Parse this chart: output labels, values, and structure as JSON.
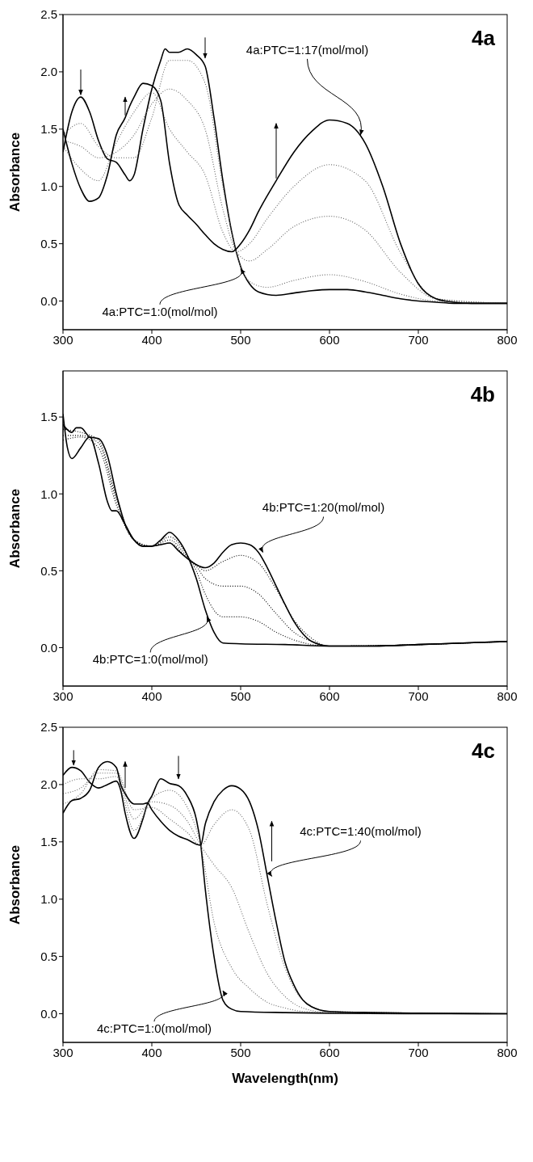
{
  "chart_data": [
    {
      "type": "line",
      "ylabel": "Absorbance",
      "xlim": [
        300,
        800
      ],
      "xticks": [
        300,
        400,
        500,
        600,
        700,
        800
      ],
      "ylim": [
        -0.25,
        2.5
      ],
      "yticks": [
        {
          "value": 0,
          "label": "0.0"
        },
        {
          "value": 0.5,
          "label": "0.5"
        },
        {
          "value": 1,
          "label": "1.0"
        },
        {
          "value": 1.5,
          "label": "1.5"
        },
        {
          "value": 2,
          "label": "2.0"
        },
        {
          "value": 2.5,
          "label": "2.5"
        }
      ],
      "annotations": [
        "4a",
        {
          "text": "4a:PTC=1:17(mol/mol)",
          "x": 635,
          "y": 1.45
        },
        {
          "text": "4a:PTC=1:0(mol/mol)",
          "x": 500,
          "y": 0.28
        }
      ],
      "series": [
        {
          "color": "#000000",
          "line_style": "solid",
          "x": [
            300,
            310,
            320,
            330,
            340,
            350,
            360,
            370,
            375,
            380,
            390,
            400,
            410,
            415,
            420,
            430,
            440,
            450,
            460,
            470,
            480,
            490,
            500,
            510,
            520,
            540,
            560,
            580,
            600,
            620,
            640,
            660,
            680,
            700,
            720,
            740,
            760,
            800
          ],
          "values": [
            1.3,
            1.65,
            1.78,
            1.65,
            1.4,
            1.24,
            1.21,
            1.1,
            1.05,
            1.1,
            1.5,
            1.85,
            2.1,
            2.2,
            2.17,
            2.17,
            2.2,
            2.15,
            2.05,
            1.6,
            1.05,
            0.6,
            0.3,
            0.15,
            0.08,
            0.05,
            0.07,
            0.09,
            0.1,
            0.1,
            0.08,
            0.05,
            0.02,
            0,
            -0.01,
            -0.02,
            -0.02,
            -0.02
          ]
        },
        {
          "color": "#666666",
          "line_style": "dotted",
          "x": [
            300,
            320,
            340,
            360,
            380,
            400,
            420,
            440,
            460,
            480,
            495,
            510,
            530,
            560,
            600,
            640,
            680,
            720,
            800
          ],
          "values": [
            1.45,
            1.55,
            1.35,
            1.25,
            1.25,
            1.6,
            2.1,
            2.1,
            1.9,
            1.0,
            0.43,
            0.17,
            0.12,
            0.18,
            0.23,
            0.17,
            0.06,
            0,
            -0.02
          ]
        },
        {
          "color": "#666666",
          "line_style": "dotted",
          "x": [
            300,
            320,
            340,
            360,
            380,
            400,
            420,
            440,
            460,
            480,
            495,
            510,
            530,
            560,
            600,
            640,
            680,
            720,
            800
          ],
          "values": [
            1.4,
            1.35,
            1.25,
            1.3,
            1.45,
            1.72,
            1.85,
            1.75,
            1.5,
            0.8,
            0.43,
            0.35,
            0.45,
            0.65,
            0.74,
            0.62,
            0.25,
            0.02,
            -0.02
          ]
        },
        {
          "color": "#666666",
          "line_style": "dotted",
          "x": [
            300,
            320,
            340,
            360,
            380,
            400,
            420,
            440,
            460,
            480,
            495,
            510,
            530,
            560,
            600,
            640,
            680,
            720,
            800
          ],
          "values": [
            1.35,
            1.15,
            1.05,
            1.38,
            1.65,
            1.82,
            1.5,
            1.3,
            1.1,
            0.6,
            0.43,
            0.5,
            0.72,
            1.0,
            1.19,
            1.05,
            0.42,
            0.02,
            -0.02
          ]
        },
        {
          "color": "#000000",
          "line_style": "solid",
          "x": [
            300,
            310,
            320,
            330,
            340,
            350,
            360,
            370,
            375,
            380,
            390,
            400,
            410,
            420,
            430,
            440,
            450,
            460,
            470,
            480,
            490,
            500,
            510,
            520,
            540,
            560,
            580,
            600,
            620,
            640,
            660,
            680,
            700,
            720,
            740,
            760,
            800
          ],
          "values": [
            1.5,
            1.2,
            0.98,
            0.87,
            0.9,
            1.1,
            1.45,
            1.6,
            1.7,
            1.78,
            1.9,
            1.88,
            1.75,
            1.2,
            0.85,
            0.75,
            0.67,
            0.58,
            0.5,
            0.45,
            0.43,
            0.5,
            0.62,
            0.78,
            1.05,
            1.3,
            1.48,
            1.58,
            1.55,
            1.38,
            1.0,
            0.5,
            0.15,
            0.02,
            -0.01,
            -0.02,
            -0.02
          ]
        }
      ]
    },
    {
      "type": "line",
      "ylabel": "Absorbance",
      "xlim": [
        300,
        800
      ],
      "xticks": [
        300,
        400,
        500,
        600,
        700,
        800
      ],
      "ylim": [
        -0.25,
        1.8
      ],
      "yticks": [
        {
          "value": 0,
          "label": "0.0"
        },
        {
          "value": 0.5,
          "label": "0.5"
        },
        {
          "value": 1,
          "label": "1.0"
        },
        {
          "value": 1.5,
          "label": "1.5"
        }
      ],
      "annotations": [
        "4b",
        {
          "text": "4b:PTC=1:20(mol/mol)",
          "x": 525,
          "y": 0.62
        },
        {
          "text": "4b:PTC=1:0(mol/mol)",
          "x": 462,
          "y": 0.2
        }
      ],
      "series": [
        {
          "color": "#000000",
          "line_style": "solid",
          "x": [
            300,
            305,
            310,
            320,
            330,
            340,
            350,
            355,
            360,
            370,
            380,
            390,
            400,
            410,
            420,
            430,
            440,
            450,
            460,
            470,
            480,
            500,
            550,
            600,
            650,
            700,
            750,
            800
          ],
          "values": [
            1.52,
            1.3,
            1.23,
            1.3,
            1.37,
            1.2,
            0.95,
            0.89,
            0.89,
            0.8,
            0.7,
            0.66,
            0.66,
            0.7,
            0.75,
            0.7,
            0.6,
            0.45,
            0.25,
            0.1,
            0.03,
            0.025,
            0.02,
            0.01,
            0.01,
            0.02,
            0.03,
            0.04
          ]
        },
        {
          "color": "#000000",
          "line_style": "dotted",
          "x": [
            300,
            320,
            340,
            360,
            380,
            400,
            420,
            440,
            450,
            460,
            480,
            500,
            520,
            540,
            560,
            580,
            600,
            800
          ],
          "values": [
            1.35,
            1.37,
            1.3,
            0.93,
            0.7,
            0.66,
            0.72,
            0.6,
            0.5,
            0.35,
            0.2,
            0.2,
            0.17,
            0.1,
            0.05,
            0.02,
            0.01,
            0.04
          ]
        },
        {
          "color": "#000000",
          "line_style": "dotted",
          "x": [
            300,
            320,
            340,
            360,
            380,
            400,
            420,
            440,
            450,
            460,
            480,
            500,
            520,
            540,
            560,
            580,
            600,
            800
          ],
          "values": [
            1.38,
            1.38,
            1.33,
            0.96,
            0.7,
            0.66,
            0.7,
            0.59,
            0.53,
            0.45,
            0.4,
            0.4,
            0.35,
            0.22,
            0.1,
            0.04,
            0.01,
            0.04
          ]
        },
        {
          "color": "#000000",
          "line_style": "dotted",
          "x": [
            300,
            320,
            340,
            360,
            380,
            400,
            420,
            440,
            450,
            460,
            480,
            500,
            520,
            540,
            560,
            580,
            600,
            800
          ],
          "values": [
            1.42,
            1.4,
            1.35,
            0.98,
            0.7,
            0.66,
            0.68,
            0.58,
            0.54,
            0.5,
            0.56,
            0.6,
            0.55,
            0.38,
            0.18,
            0.06,
            0.01,
            0.04
          ]
        },
        {
          "color": "#000000",
          "line_style": "solid",
          "x": [
            300,
            310,
            315,
            320,
            330,
            340,
            350,
            360,
            370,
            380,
            390,
            400,
            410,
            420,
            430,
            440,
            450,
            460,
            470,
            480,
            490,
            500,
            510,
            520,
            530,
            540,
            550,
            560,
            570,
            580,
            600,
            650,
            700,
            750,
            800
          ],
          "values": [
            1.45,
            1.4,
            1.43,
            1.43,
            1.37,
            1.36,
            1.25,
            1.0,
            0.8,
            0.7,
            0.66,
            0.66,
            0.67,
            0.68,
            0.63,
            0.58,
            0.54,
            0.52,
            0.55,
            0.62,
            0.67,
            0.68,
            0.67,
            0.62,
            0.52,
            0.4,
            0.28,
            0.17,
            0.09,
            0.04,
            0.01,
            0.01,
            0.02,
            0.03,
            0.04
          ]
        }
      ]
    },
    {
      "type": "line",
      "xlabel": "Wavelength(nm)",
      "ylabel": "Absorbance",
      "xlim": [
        300,
        800
      ],
      "xticks": [
        300,
        400,
        500,
        600,
        700,
        800
      ],
      "ylim": [
        -0.25,
        2.5
      ],
      "yticks": [
        {
          "value": 0,
          "label": "0.0"
        },
        {
          "value": 0.5,
          "label": "0.5"
        },
        {
          "value": 1,
          "label": "1.0"
        },
        {
          "value": 1.5,
          "label": "1.5"
        },
        {
          "value": 2,
          "label": "2.0"
        },
        {
          "value": 2.5,
          "label": "2.5"
        }
      ],
      "annotations": [
        "4c",
        {
          "text": "4c:PTC=1:40(mol/mol)",
          "x": 535,
          "y": 1.2
        },
        {
          "text": "4c:PTC=1:0(mol/mol)",
          "x": 480,
          "y": 0.2
        }
      ],
      "series": [
        {
          "color": "#000000",
          "line_style": "solid",
          "x": [
            300,
            310,
            320,
            330,
            340,
            350,
            360,
            365,
            370,
            380,
            390,
            395,
            400,
            410,
            420,
            430,
            440,
            450,
            455,
            460,
            470,
            480,
            490,
            500,
            550,
            600,
            700,
            800
          ],
          "values": [
            2.08,
            2.15,
            2.12,
            2.02,
            1.97,
            2.0,
            2.03,
            1.95,
            1.75,
            1.53,
            1.7,
            1.83,
            1.9,
            2.05,
            2.01,
            1.99,
            1.9,
            1.7,
            1.48,
            1.1,
            0.5,
            0.12,
            0.04,
            0.02,
            0.01,
            0.005,
            0,
            0
          ]
        },
        {
          "color": "#666666",
          "line_style": "dotted",
          "x": [
            300,
            320,
            340,
            360,
            380,
            400,
            420,
            440,
            455,
            470,
            490,
            510,
            530,
            550,
            570,
            600,
            800
          ],
          "values": [
            2.0,
            2.05,
            2.05,
            2.07,
            1.6,
            1.88,
            1.95,
            1.8,
            1.47,
            0.8,
            0.4,
            0.22,
            0.1,
            0.05,
            0.02,
            0.01,
            0
          ]
        },
        {
          "color": "#666666",
          "line_style": "dotted",
          "x": [
            300,
            320,
            340,
            360,
            380,
            400,
            420,
            440,
            455,
            470,
            490,
            510,
            530,
            550,
            570,
            600,
            800
          ],
          "values": [
            1.92,
            1.97,
            2.1,
            2.1,
            1.7,
            1.85,
            1.82,
            1.68,
            1.47,
            1.3,
            1.1,
            0.7,
            0.35,
            0.15,
            0.05,
            0.01,
            0
          ]
        },
        {
          "color": "#666666",
          "line_style": "dotted",
          "x": [
            300,
            320,
            340,
            360,
            380,
            400,
            420,
            440,
            455,
            470,
            490,
            510,
            530,
            550,
            570,
            600,
            800
          ],
          "values": [
            1.83,
            1.92,
            2.13,
            2.12,
            1.78,
            1.8,
            1.7,
            1.58,
            1.47,
            1.65,
            1.78,
            1.6,
            0.95,
            0.4,
            0.12,
            0.02,
            0
          ]
        },
        {
          "color": "#000000",
          "line_style": "solid",
          "x": [
            300,
            310,
            320,
            330,
            340,
            350,
            360,
            365,
            370,
            380,
            390,
            395,
            400,
            410,
            420,
            430,
            440,
            450,
            455,
            460,
            470,
            480,
            490,
            500,
            510,
            520,
            530,
            540,
            550,
            560,
            570,
            580,
            600,
            650,
            700,
            800
          ],
          "values": [
            1.75,
            1.86,
            1.88,
            1.95,
            2.15,
            2.2,
            2.15,
            2.0,
            1.92,
            1.83,
            1.83,
            1.84,
            1.78,
            1.68,
            1.6,
            1.55,
            1.52,
            1.48,
            1.47,
            1.65,
            1.85,
            1.95,
            1.99,
            1.96,
            1.85,
            1.6,
            1.2,
            0.8,
            0.45,
            0.25,
            0.12,
            0.06,
            0.02,
            0.01,
            0.005,
            0
          ]
        }
      ]
    }
  ]
}
